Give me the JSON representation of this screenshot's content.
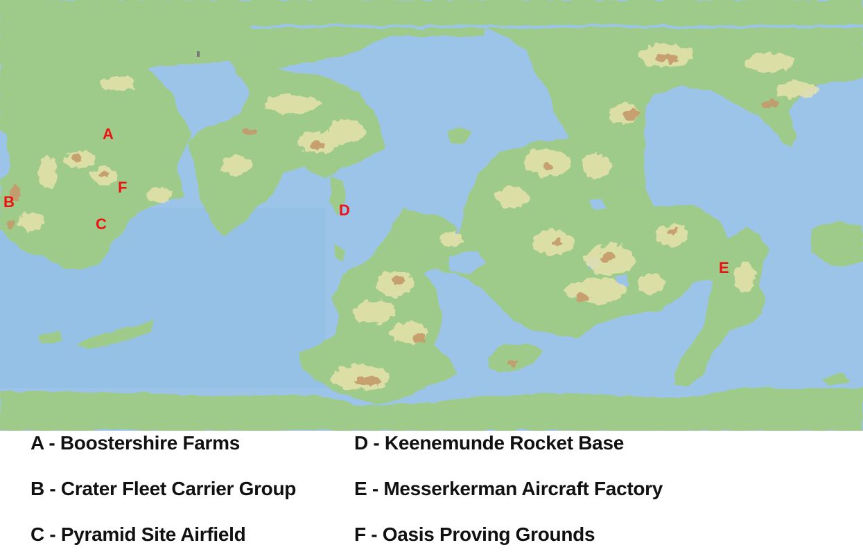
{
  "colors": {
    "ocean": "#9cc4e8",
    "ocean_deep": "#8ab8e2",
    "polar": "#94c08a",
    "land": "#9fcb8a",
    "highland": "#e6e2aa",
    "mountain": "#c49a6a",
    "marker": "#ee1111",
    "legend_text": "#111111"
  },
  "markers": [
    {
      "letter": "A"
    },
    {
      "letter": "B"
    },
    {
      "letter": "C"
    },
    {
      "letter": "D"
    },
    {
      "letter": "E"
    },
    {
      "letter": "F"
    }
  ],
  "legend": [
    {
      "text": "A - Boostershire Farms"
    },
    {
      "text": "B - Crater Fleet Carrier Group"
    },
    {
      "text": "C - Pyramid Site Airfield"
    },
    {
      "text": "D - Keenemunde Rocket Base"
    },
    {
      "text": "E - Messerkerman Aircraft Factory"
    },
    {
      "text": "F - Oasis Proving Grounds"
    }
  ]
}
